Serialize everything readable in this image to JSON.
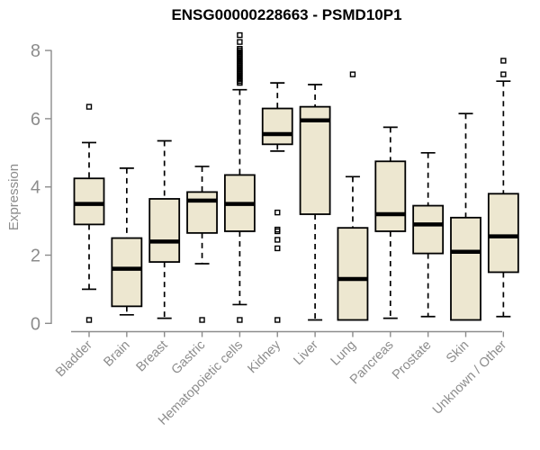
{
  "chart_data": {
    "type": "boxplot",
    "title": "ENSG00000228663 - PSMD10P1",
    "ylabel": "Expression",
    "xlabel": "",
    "ylim": [
      0,
      8.6
    ],
    "yticks": [
      0,
      2,
      4,
      6,
      8
    ],
    "grid": false,
    "legend": false,
    "xlabel_rotation": 45,
    "categories": [
      "Bladder",
      "Brain",
      "Breast",
      "Gastric",
      "Hematopoietic cells",
      "Kidney",
      "Liver",
      "Lung",
      "Pancreas",
      "Prostate",
      "Skin",
      "Unknown / Other"
    ],
    "boxes": [
      {
        "category": "Bladder",
        "whisker_low": 1.0,
        "q1": 2.9,
        "median": 3.5,
        "q3": 4.25,
        "whisker_high": 5.3,
        "outliers": [
          6.35,
          0.1
        ]
      },
      {
        "category": "Brain",
        "whisker_low": 0.25,
        "q1": 0.5,
        "median": 1.6,
        "q3": 2.5,
        "whisker_high": 4.55,
        "outliers": []
      },
      {
        "category": "Breast",
        "whisker_low": 0.15,
        "q1": 1.8,
        "median": 2.4,
        "q3": 3.65,
        "whisker_high": 5.35,
        "outliers": []
      },
      {
        "category": "Gastric",
        "whisker_low": 1.75,
        "q1": 2.65,
        "median": 3.6,
        "q3": 3.85,
        "whisker_high": 4.6,
        "outliers": [
          0.1
        ]
      },
      {
        "category": "Hematopoietic cells",
        "whisker_low": 0.55,
        "q1": 2.7,
        "median": 3.5,
        "q3": 4.35,
        "whisker_high": 6.85,
        "outliers": [
          8.45,
          8.25,
          8.05,
          8.0,
          7.95,
          7.9,
          7.85,
          7.8,
          7.75,
          7.7,
          7.65,
          7.6,
          7.55,
          7.5,
          7.45,
          7.4,
          7.35,
          7.3,
          7.25,
          7.2,
          7.15,
          7.1,
          7.05,
          0.1
        ]
      },
      {
        "category": "Kidney",
        "whisker_low": 5.05,
        "q1": 5.25,
        "median": 5.55,
        "q3": 6.3,
        "whisker_high": 7.05,
        "outliers": [
          3.25,
          2.75,
          2.7,
          2.45,
          2.2,
          0.1
        ]
      },
      {
        "category": "Liver",
        "whisker_low": 0.1,
        "q1": 3.2,
        "median": 5.95,
        "q3": 6.35,
        "whisker_high": 7.0,
        "outliers": []
      },
      {
        "category": "Lung",
        "whisker_low": 0.1,
        "q1": 0.1,
        "median": 1.3,
        "q3": 2.8,
        "whisker_high": 4.3,
        "outliers": [
          7.3
        ]
      },
      {
        "category": "Pancreas",
        "whisker_low": 0.15,
        "q1": 2.7,
        "median": 3.2,
        "q3": 4.75,
        "whisker_high": 5.75,
        "outliers": []
      },
      {
        "category": "Prostate",
        "whisker_low": 0.2,
        "q1": 2.05,
        "median": 2.9,
        "q3": 3.45,
        "whisker_high": 5.0,
        "outliers": []
      },
      {
        "category": "Skin",
        "whisker_low": 0.1,
        "q1": 0.1,
        "median": 2.1,
        "q3": 3.1,
        "whisker_high": 6.15,
        "outliers": []
      },
      {
        "category": "Unknown / Other",
        "whisker_low": 0.2,
        "q1": 1.5,
        "median": 2.55,
        "q3": 3.8,
        "whisker_high": 7.1,
        "outliers": [
          7.7,
          7.3
        ]
      }
    ],
    "colors": {
      "box_fill": "#ede7d0",
      "box_border": "#000000",
      "median": "#000000",
      "whisker": "#000000",
      "outlier": "#000000",
      "axis": "#8c8c8c",
      "tick_label": "#8c8c8c",
      "title": "#000000",
      "background": "#ffffff"
    }
  }
}
